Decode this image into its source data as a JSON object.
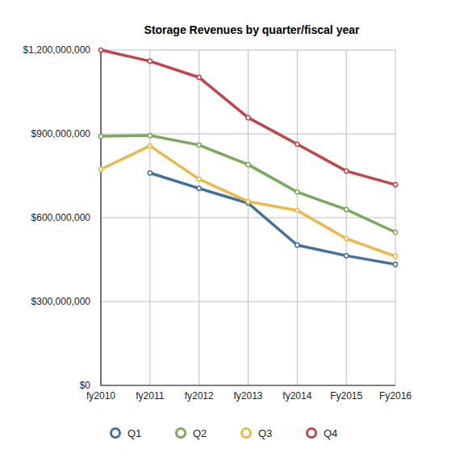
{
  "chart_data": {
    "type": "line",
    "title": "Storage Revenues by quarter/fiscal year",
    "categories": [
      "fy2010",
      "fy2011",
      "fy2012",
      "fy2013",
      "fy2014",
      "Fy2015",
      "Fy2016"
    ],
    "series": [
      {
        "name": "Q1",
        "color": "#41719f",
        "values": [
          null,
          760000000,
          705000000,
          652000000,
          502000000,
          464000000,
          433000000
        ]
      },
      {
        "name": "Q2",
        "color": "#78aa5b",
        "values": [
          891000000,
          894000000,
          860000000,
          790000000,
          692000000,
          629000000,
          548000000
        ]
      },
      {
        "name": "Q3",
        "color": "#ebb94b",
        "values": [
          773000000,
          857000000,
          738000000,
          658000000,
          626000000,
          525000000,
          462000000
        ]
      },
      {
        "name": "Q4",
        "color": "#c1444a",
        "values": [
          1200000000,
          1160000000,
          1102000000,
          958000000,
          863000000,
          767000000,
          718000000
        ]
      }
    ],
    "ylim": [
      0,
      1200000000
    ],
    "yticks": [
      {
        "value": 0,
        "label": "$0"
      },
      {
        "value": 300000000,
        "label": "$300,000,000"
      },
      {
        "value": 600000000,
        "label": "$600,000,000"
      },
      {
        "value": 900000000,
        "label": "$900,000,000"
      },
      {
        "value": 1200000000,
        "label": "$1,200,000,000"
      }
    ],
    "grid": true,
    "legend": "bottom",
    "marker": "circle"
  }
}
